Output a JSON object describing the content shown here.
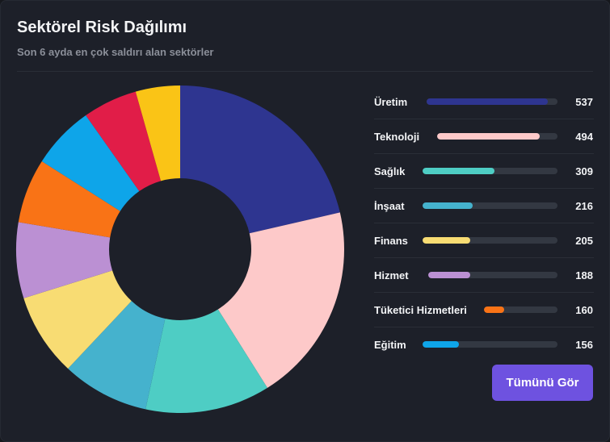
{
  "header": {
    "title": "Sektörel Risk Dağılımı",
    "subtitle": "Son 6 ayda en çok saldırı alan sektörler"
  },
  "button": {
    "label": "Tümünü Gör",
    "color": "#6e52e0"
  },
  "chart_data": {
    "type": "pie",
    "variant": "donut",
    "title": "Sektörel Risk Dağılımı",
    "categories": [
      "Üretim",
      "Teknoloji",
      "Sağlık",
      "İnşaat",
      "Finans",
      "Hizmet",
      "Tüketici Hizmetleri",
      "Eğitim",
      "",
      ""
    ],
    "values": [
      537,
      494,
      309,
      216,
      205,
      188,
      160,
      156,
      135,
      110
    ],
    "colors": [
      "#2e3590",
      "#fdc9c9",
      "#4ecdc4",
      "#45b2cd",
      "#f8dc73",
      "#bb90d3",
      "#f97316",
      "#0ea5e9",
      "#e11d48",
      "#fac416"
    ],
    "legend_position": "right",
    "legend_count": 8,
    "legend_max": 580
  }
}
